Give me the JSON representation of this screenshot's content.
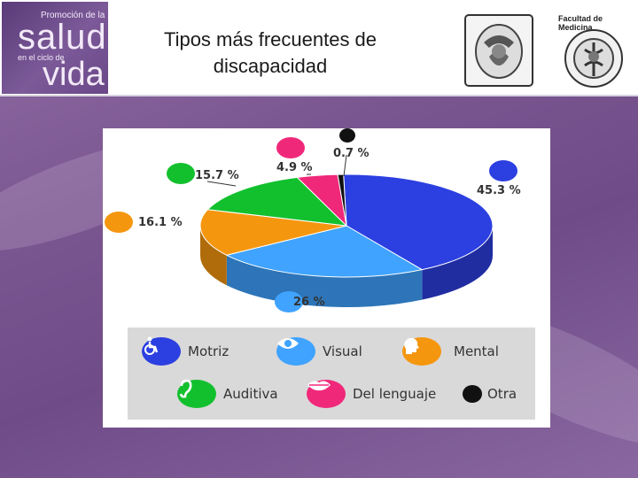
{
  "header": {
    "title_line1": "Tipos más frecuentes de",
    "title_line2": "discapacidad",
    "logo_promo": {
      "line1": "Promoción de la",
      "line2": "salud",
      "line3": "en el ciclo de",
      "line4": "vida"
    },
    "faculty_label": "Facultad de Medicina"
  },
  "chart_data": {
    "type": "pie",
    "title": "",
    "slices": [
      {
        "name": "Motriz",
        "value": 45.3,
        "label": "45.3 %",
        "color": "#2c3fe0",
        "icon": "wheelchair-icon"
      },
      {
        "name": "Visual",
        "value": 26,
        "label": "26 %",
        "color": "#3fa3ff",
        "icon": "eye-icon"
      },
      {
        "name": "Mental",
        "value": 16.1,
        "label": "16.1 %",
        "color": "#f5960f",
        "icon": "head-icon"
      },
      {
        "name": "Auditiva",
        "value": 15.7,
        "label": "15.7 %",
        "color": "#12c02e",
        "icon": "ear-icon"
      },
      {
        "name": "Del lenguaje",
        "value": 4.9,
        "label": "4.9 %",
        "color": "#f0287a",
        "icon": "lips-icon"
      },
      {
        "name": "Otra",
        "value": 0.7,
        "label": "0.7 %",
        "color": "#111111",
        "icon": "dot-icon"
      }
    ],
    "legend_placement": "bottom"
  }
}
